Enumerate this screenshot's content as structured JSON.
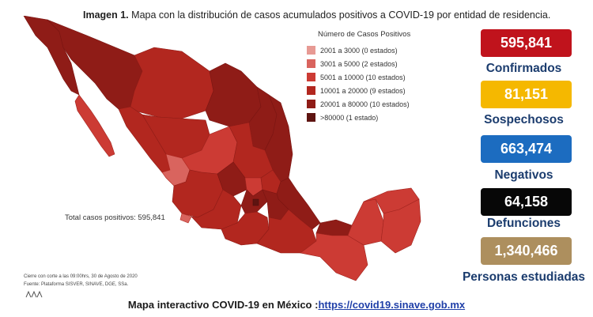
{
  "header": {
    "title_bold": "Imagen 1.",
    "title_rest": "Mapa con la distribución de casos acumulados positivos a COVID-19 por entidad de residencia."
  },
  "legend": {
    "title": "Número de Casos Positivos",
    "items": [
      {
        "label": "2001 a 3000 (0 estados)",
        "color": "#e79a94"
      },
      {
        "label": "3001 a 5000 (2 estados)",
        "color": "#d9645e"
      },
      {
        "label": "5001 a 10000 (10 estados)",
        "color": "#cc3b34"
      },
      {
        "label": "10001 a 20000 (9 estados)",
        "color": "#b2271f"
      },
      {
        "label": "20001 a 80000 (10 estados)",
        "color": "#8f1c17"
      },
      {
        "label": ">80000 (1 estado)",
        "color": "#5e1411"
      }
    ]
  },
  "map": {
    "total_label": "Total casos positivos: 595,841"
  },
  "footnote": {
    "line1": "Cierre con corte a las 09:00hrs, 30 de Agosto de 2020",
    "line2": "Fuente: Plataforma SISVER, SINAVE, DGE, SSa."
  },
  "stats": [
    {
      "value": "595,841",
      "label": "Confirmados",
      "color": "#c0131c"
    },
    {
      "value": "81,151",
      "label": "Sospechosos",
      "color": "#f5b800"
    },
    {
      "value": "663,474",
      "label": "Negativos",
      "color": "#1c6cc0"
    },
    {
      "value": "64,158",
      "label": "Defunciones",
      "color": "#070707"
    },
    {
      "value": "1,340,466",
      "label": "Personas estudiadas",
      "color": "#ad8f5e"
    }
  ],
  "bottom": {
    "text": "Mapa interactivo COVID-19 en México :",
    "link": "https://covid19.sinave.gob.mx"
  }
}
